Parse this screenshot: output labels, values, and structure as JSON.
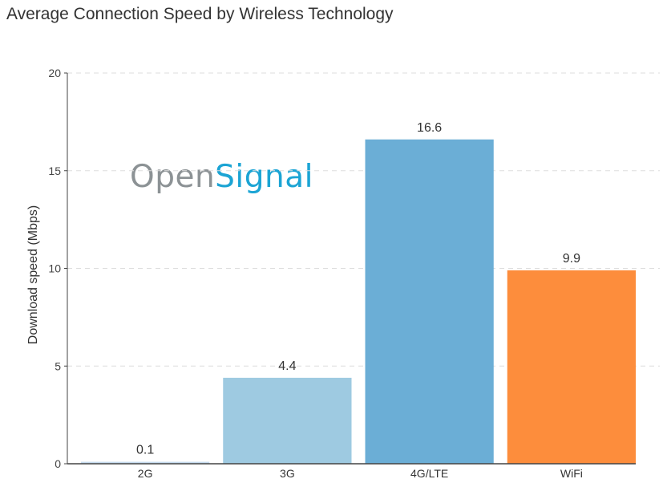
{
  "chart_data": {
    "type": "bar",
    "title": "Average Connection Speed by Wireless Technology",
    "xlabel": "",
    "ylabel": "Download speed (Mbps)",
    "categories": [
      "2G",
      "3G",
      "4G/LTE",
      "WiFi"
    ],
    "values": [
      0.1,
      4.4,
      16.6,
      9.9
    ],
    "data_labels": [
      "0.1",
      "4.4",
      "16.6",
      "9.9"
    ],
    "colors": [
      "#c6dbef",
      "#9ecae1",
      "#6baed6",
      "#fd8d3c"
    ],
    "ylim": [
      0,
      20
    ],
    "yticks": [
      0,
      5,
      10,
      15,
      20
    ],
    "grid": true,
    "gridline_color": "#dddddd"
  },
  "logo": {
    "part1": "Open",
    "part2": "Signal"
  }
}
